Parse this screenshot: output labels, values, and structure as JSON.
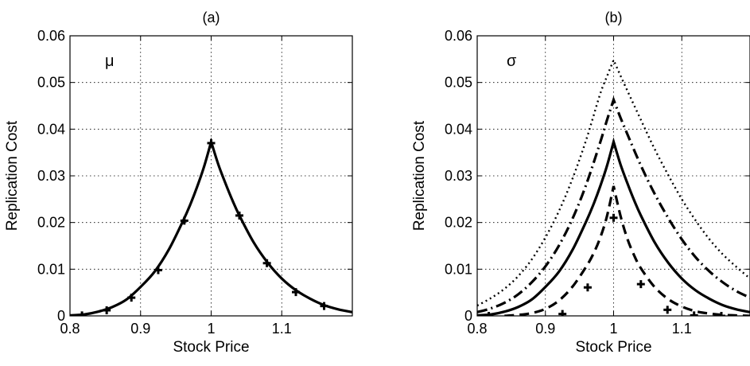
{
  "chart_data": [
    {
      "type": "line",
      "panel_title": "(a)",
      "annotation": "μ",
      "xlabel": "Stock Price",
      "ylabel": "Replication Cost",
      "xlim": [
        0.8,
        1.2
      ],
      "ylim": [
        0,
        0.06
      ],
      "xticks": [
        0.8,
        0.9,
        1,
        1.1
      ],
      "xtick_labels": [
        "0.8",
        "0.9",
        "1",
        "1.1"
      ],
      "yticks": [
        0,
        0.01,
        0.02,
        0.03,
        0.04,
        0.05,
        0.06
      ],
      "ytick_labels": [
        "0",
        "0.01",
        "0.02",
        "0.03",
        "0.04",
        "0.05",
        "0.06"
      ],
      "grid": "dotted",
      "series": [
        {
          "style": "solid",
          "x": [
            0.8,
            0.82,
            0.84,
            0.86,
            0.88,
            0.9,
            0.92,
            0.94,
            0.96,
            0.97,
            0.98,
            0.99,
            1.0,
            1.01,
            1.02,
            1.03,
            1.04,
            1.06,
            1.08,
            1.1,
            1.12,
            1.14,
            1.16,
            1.18,
            1.2
          ],
          "y": [
            0.0001,
            0.0003,
            0.0009,
            0.0019,
            0.0035,
            0.0062,
            0.0095,
            0.0142,
            0.0203,
            0.0237,
            0.0276,
            0.032,
            0.0373,
            0.0325,
            0.0285,
            0.0248,
            0.0215,
            0.0158,
            0.0114,
            0.008,
            0.0055,
            0.0037,
            0.0023,
            0.0014,
            0.0008
          ]
        },
        {
          "style": "markers",
          "marker": "plus",
          "x": [
            0.817,
            0.852,
            0.887,
            0.925,
            0.962,
            1.0,
            1.04,
            1.079,
            1.12,
            1.16
          ],
          "y": [
            0.0001,
            0.0012,
            0.0039,
            0.0098,
            0.0204,
            0.037,
            0.0215,
            0.0113,
            0.0051,
            0.0021
          ]
        }
      ]
    },
    {
      "type": "line",
      "panel_title": "(b)",
      "annotation": "σ",
      "xlabel": "Stock Price",
      "ylabel": "Replication Cost",
      "xlim": [
        0.8,
        1.2
      ],
      "ylim": [
        0,
        0.06
      ],
      "xticks": [
        0.8,
        0.9,
        1,
        1.1
      ],
      "xtick_labels": [
        "0.8",
        "0.9",
        "1",
        "1.1"
      ],
      "yticks": [
        0,
        0.01,
        0.02,
        0.03,
        0.04,
        0.05,
        0.06
      ],
      "ytick_labels": [
        "0",
        "0.01",
        "0.02",
        "0.03",
        "0.04",
        "0.05",
        "0.06"
      ],
      "grid": "dotted",
      "series": [
        {
          "style": "dotted",
          "x": [
            0.8,
            0.82,
            0.84,
            0.86,
            0.88,
            0.9,
            0.92,
            0.94,
            0.96,
            0.98,
            0.99,
            1.0,
            1.01,
            1.02,
            1.04,
            1.06,
            1.08,
            1.1,
            1.12,
            1.14,
            1.16,
            1.18,
            1.2
          ],
          "y": [
            0.0022,
            0.0038,
            0.0058,
            0.0085,
            0.0121,
            0.0168,
            0.0225,
            0.0295,
            0.0378,
            0.0474,
            0.0512,
            0.0548,
            0.0515,
            0.0483,
            0.042,
            0.0358,
            0.0302,
            0.025,
            0.0205,
            0.0165,
            0.0132,
            0.0105,
            0.008
          ]
        },
        {
          "style": "dashdot",
          "x": [
            0.8,
            0.82,
            0.84,
            0.86,
            0.88,
            0.9,
            0.92,
            0.94,
            0.96,
            0.98,
            0.99,
            1.0,
            1.01,
            1.02,
            1.04,
            1.06,
            1.08,
            1.1,
            1.12,
            1.14,
            1.16,
            1.18,
            1.2
          ],
          "y": [
            0.0008,
            0.0016,
            0.0028,
            0.0046,
            0.0072,
            0.0106,
            0.0151,
            0.0209,
            0.0282,
            0.037,
            0.0418,
            0.0463,
            0.0425,
            0.039,
            0.0322,
            0.0262,
            0.021,
            0.0164,
            0.0126,
            0.0096,
            0.0072,
            0.0053,
            0.0039
          ]
        },
        {
          "style": "solid",
          "x": [
            0.8,
            0.82,
            0.84,
            0.86,
            0.88,
            0.9,
            0.92,
            0.94,
            0.96,
            0.97,
            0.98,
            0.99,
            1.0,
            1.01,
            1.02,
            1.03,
            1.04,
            1.06,
            1.08,
            1.1,
            1.12,
            1.14,
            1.16,
            1.18,
            1.2
          ],
          "y": [
            0.0001,
            0.0003,
            0.0009,
            0.0019,
            0.0035,
            0.0062,
            0.0095,
            0.0142,
            0.0203,
            0.0237,
            0.0276,
            0.032,
            0.0373,
            0.0325,
            0.0285,
            0.0248,
            0.0215,
            0.0158,
            0.0114,
            0.008,
            0.0055,
            0.0037,
            0.0023,
            0.0014,
            0.0008
          ]
        },
        {
          "style": "dashed",
          "x": [
            0.84,
            0.86,
            0.88,
            0.9,
            0.92,
            0.94,
            0.96,
            0.97,
            0.98,
            0.99,
            1.0,
            1.01,
            1.02,
            1.03,
            1.04,
            1.06,
            1.08,
            1.1,
            1.12,
            1.14,
            1.16,
            1.18,
            1.2
          ],
          "y": [
            0.0,
            0.0002,
            0.0006,
            0.0015,
            0.0033,
            0.0063,
            0.0106,
            0.0132,
            0.0166,
            0.0212,
            0.0278,
            0.0215,
            0.0166,
            0.013,
            0.0102,
            0.0062,
            0.0036,
            0.002,
            0.001,
            0.0005,
            0.0002,
            0.0001,
            0.0
          ]
        },
        {
          "style": "markers",
          "marker": "plus",
          "x": [
            0.817,
            0.925,
            0.962,
            1.0,
            1.04,
            1.079,
            1.118,
            1.158
          ],
          "y": [
            0.0,
            0.0004,
            0.0061,
            0.021,
            0.0068,
            0.0013,
            0.0001,
            0.0
          ]
        }
      ]
    }
  ]
}
